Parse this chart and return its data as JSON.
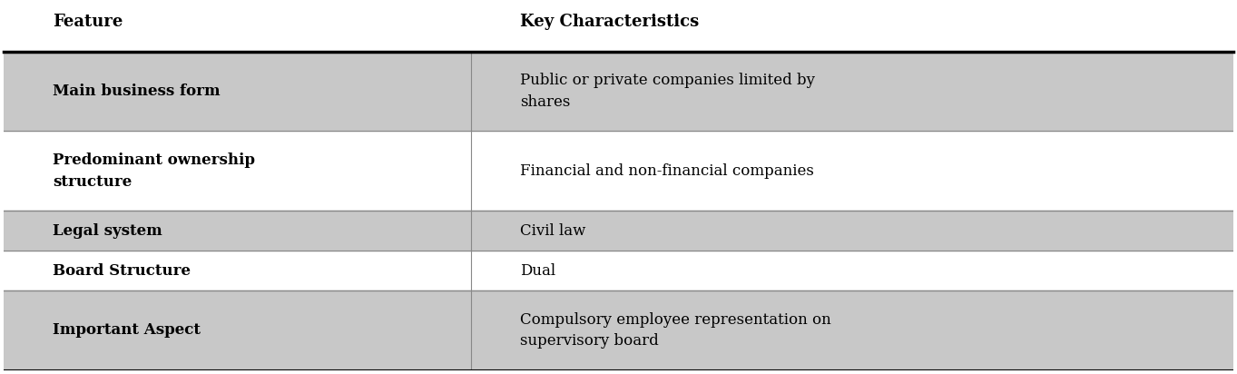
{
  "header": [
    "Feature",
    "Key Characteristics"
  ],
  "rows": [
    {
      "feature": "Main business form",
      "key_char": "Public or private companies limited by\nshares",
      "shaded": true
    },
    {
      "feature": "Predominant ownership\nstructure",
      "key_char": "Financial and non-financial companies",
      "shaded": false
    },
    {
      "feature": "Legal system",
      "key_char": "Civil law",
      "shaded": true
    },
    {
      "feature": "Board Structure",
      "key_char": "Dual",
      "shaded": false
    },
    {
      "feature": "Important Aspect",
      "key_char": "Compulsory employee representation on\nsupervisory board",
      "shaded": true
    }
  ],
  "col_split": 0.38,
  "header_bg": "#ffffff",
  "shaded_bg": "#c8c8c8",
  "unshaded_bg": "#ffffff",
  "header_font_size": 13,
  "cell_font_size": 12,
  "text_color": "#000000",
  "top_border_color": "#000000",
  "divider_color": "#888888",
  "figsize": [
    13.63,
    4.12
  ]
}
